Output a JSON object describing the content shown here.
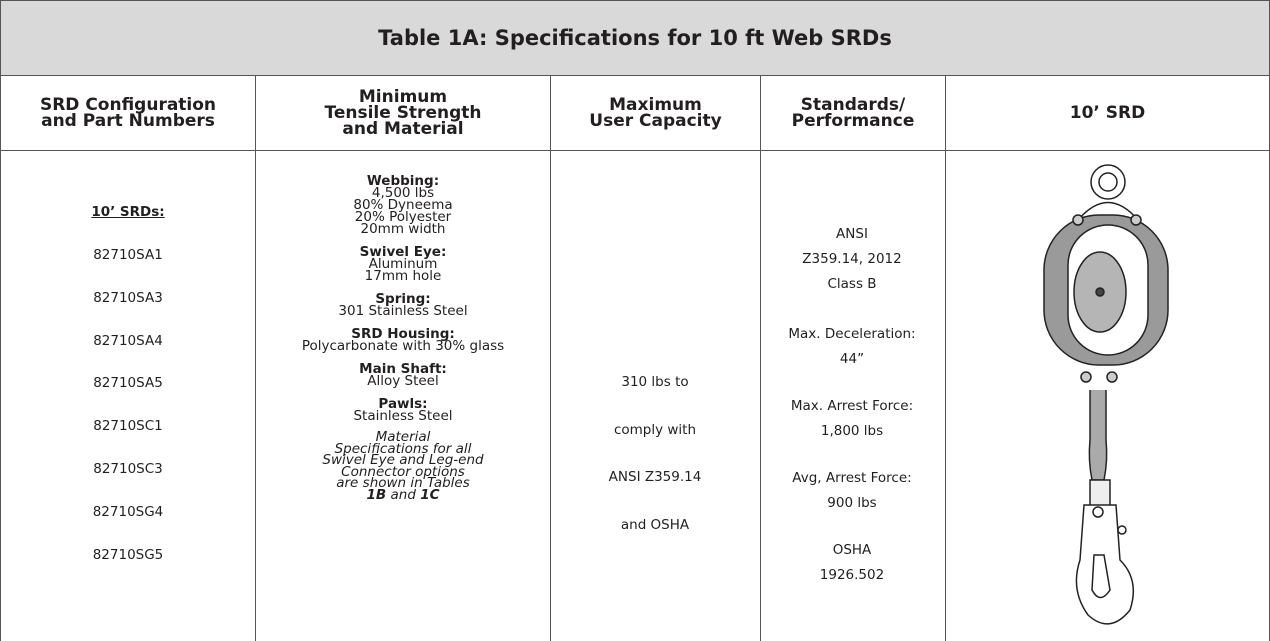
{
  "table": {
    "title": "Table 1A:  Specifications for 10 ft Web SRDs",
    "headers": [
      [
        "SRD Configuration",
        "and Part Numbers"
      ],
      [
        "Minimum",
        "Tensile Strength",
        "and Material"
      ],
      [
        "Maximum",
        "User Capacity"
      ],
      [
        "Standards/",
        "Performance"
      ],
      [
        "10’ SRD"
      ]
    ],
    "part_numbers": {
      "label": "10’ SRDs:",
      "items": [
        "82710SA1",
        "82710SA3",
        "82710SA4",
        "82710SA5",
        "82710SC1",
        "82710SC3",
        "82710SG4",
        "82710SG5"
      ]
    },
    "materials": [
      {
        "heading": "Webbing:",
        "lines": [
          "4,500 lbs",
          "80% Dyneema",
          "20% Polyester",
          "20mm width"
        ]
      },
      {
        "heading": "Swivel Eye:",
        "lines": [
          "Aluminum",
          "17mm hole"
        ]
      },
      {
        "heading": "Spring:",
        "lines": [
          "301 Stainless Steel"
        ]
      },
      {
        "heading": "SRD Housing:",
        "lines": [
          "Polycarbonate with 30% glass"
        ]
      },
      {
        "heading": "Main Shaft:",
        "lines": [
          "Alloy Steel"
        ]
      },
      {
        "heading": "Pawls:",
        "lines": [
          "Stainless Steel"
        ]
      }
    ],
    "materials_note": {
      "lines": [
        "Material",
        "Specifications for all",
        "Swivel Eye and Leg-end",
        "Connector options",
        "are shown in Tables"
      ],
      "last": [
        "1B",
        "and",
        "1C"
      ]
    },
    "capacity": [
      "310 lbs to",
      "comply with",
      "ANSI Z359.14",
      "and OSHA"
    ],
    "standards": [
      [
        "ANSI",
        "Z359.14, 2012",
        "Class B"
      ],
      [
        "Max. Deceleration:",
        "44”"
      ],
      [
        "Max. Arrest Force:",
        "1,800 lbs"
      ],
      [
        "Avg, Arrest Force:",
        "900 lbs"
      ],
      [
        "OSHA",
        "1926.502"
      ]
    ]
  }
}
